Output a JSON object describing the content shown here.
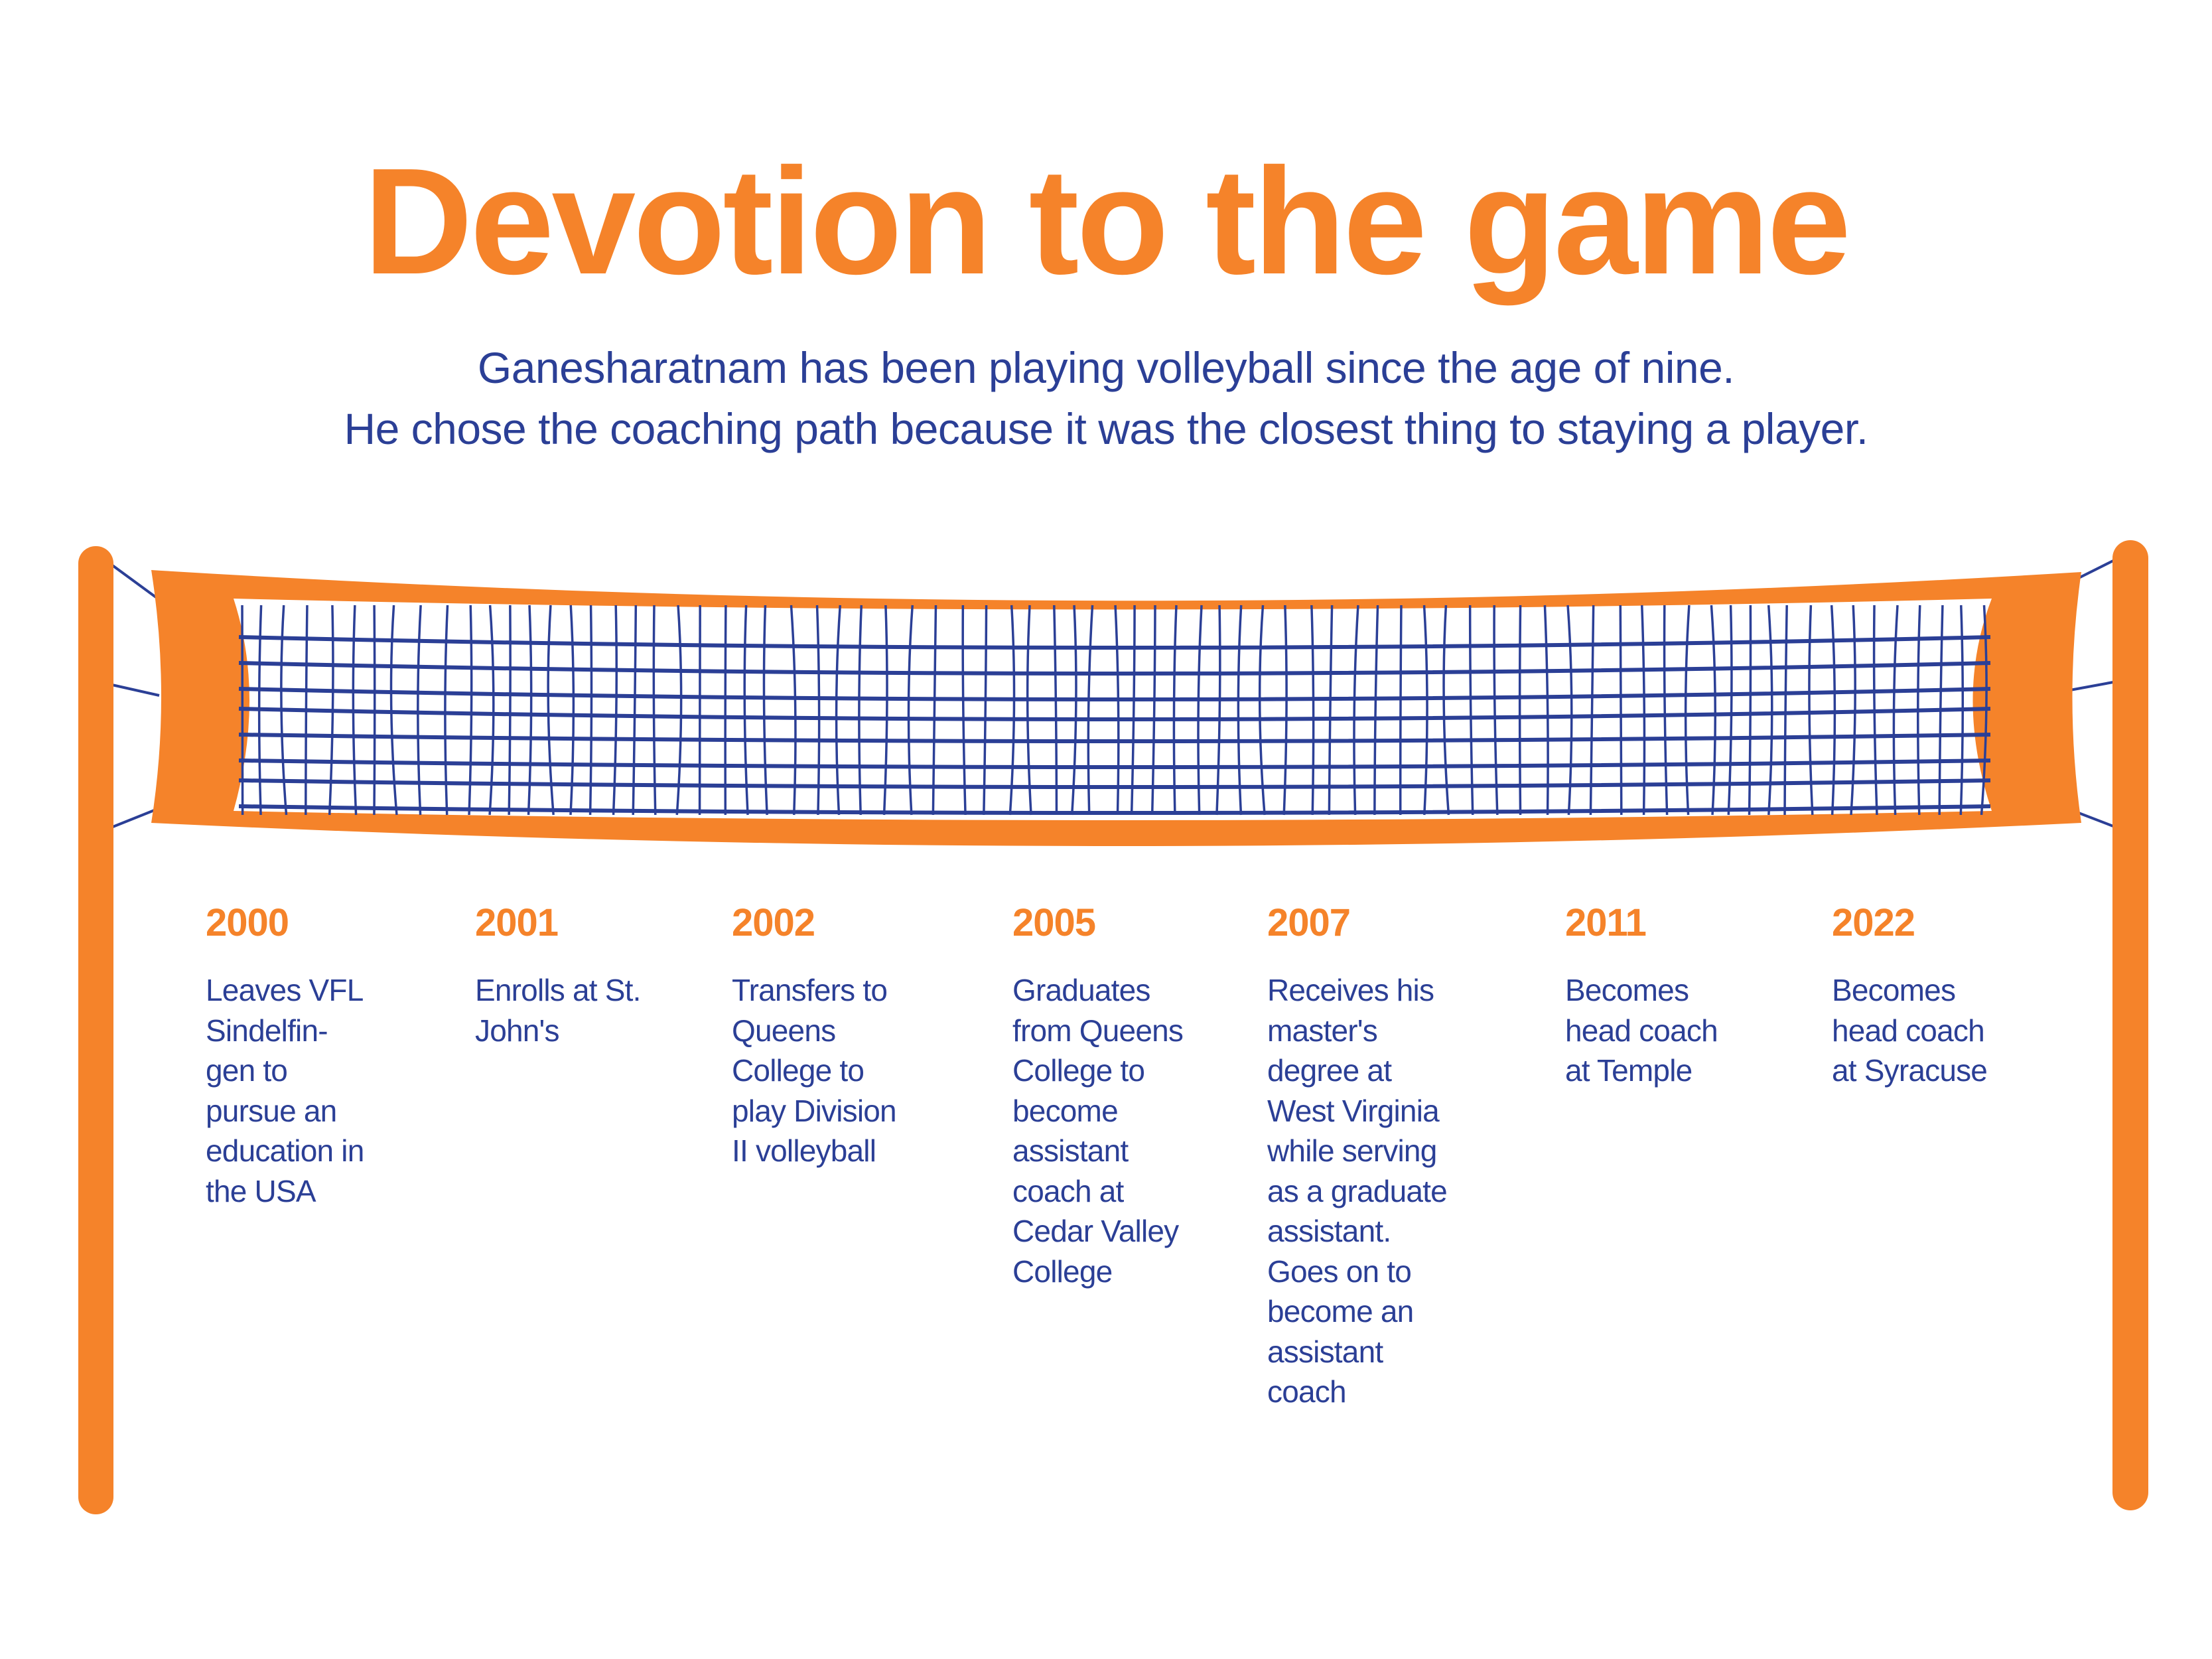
{
  "title": "Devotion to the game",
  "subtitle": [
    "Ganesharatnam has been playing volleyball since the age of nine.",
    "He chose the coaching path because it was the closest thing to staying a player."
  ],
  "colors": {
    "accent": "#F5832A",
    "text": "#2B3F96"
  },
  "illustration": "volleyball-net",
  "timeline": [
    {
      "year": "2000",
      "text": "Leaves VFL\nSindelfin-\ngen to\npursue an\neducation in\nthe USA"
    },
    {
      "year": "2001",
      "text": "Enrolls at St.\nJohn's"
    },
    {
      "year": "2002",
      "text": "Transfers to\nQueens\nCollege to\nplay Division\nII volleyball"
    },
    {
      "year": "2005",
      "text": "Graduates\nfrom Queens\nCollege to\nbecome\nassistant\ncoach at\nCedar Valley\nCollege"
    },
    {
      "year": "2007",
      "text": "Receives his\nmaster's\ndegree at\nWest Virginia\nwhile serving\nas a graduate\nassistant.\nGoes on to\nbecome an\nassistant\ncoach"
    },
    {
      "year": "2011",
      "text": "Becomes\nhead coach\nat Temple"
    },
    {
      "year": "2022",
      "text": "Becomes\nhead coach\nat Syracuse"
    }
  ]
}
